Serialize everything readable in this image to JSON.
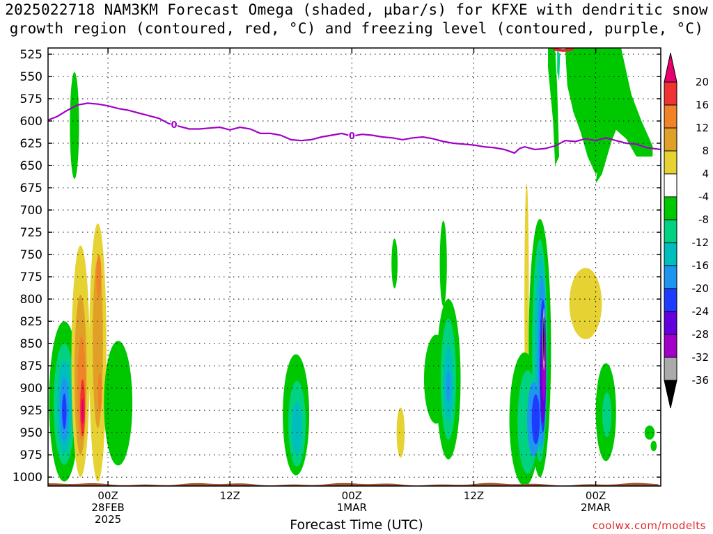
{
  "title_line1": "2025022718 NAM3KM Forecast Omega (shaded, µbar/s) for KFXE with dendritic snow",
  "title_line2": "growth region (contoured, red, °C) and freezing level (contoured, purple, °C)",
  "xlabel": "Forecast Time (UTC)",
  "credit": "coolwx.com/modelts",
  "colors": {
    "freezing_level": "#a000c8",
    "snow_region": "#e0282a",
    "terrain": "#a0522d"
  },
  "chart_data": {
    "type": "heatmap",
    "y_ticks": [
      525,
      550,
      575,
      600,
      625,
      650,
      675,
      700,
      725,
      750,
      775,
      800,
      825,
      850,
      875,
      900,
      925,
      950,
      975,
      1000
    ],
    "y_range_hpa": [
      518,
      1010
    ],
    "x_range_hours": [
      -5.9,
      54.4
    ],
    "x_ticks": [
      {
        "hour": 0,
        "lines": [
          "00Z",
          "28FEB",
          "2025"
        ]
      },
      {
        "hour": 12,
        "lines": [
          "12Z"
        ]
      },
      {
        "hour": 24,
        "lines": [
          "00Z",
          "1MAR"
        ]
      },
      {
        "hour": 36,
        "lines": [
          "12Z"
        ]
      },
      {
        "hour": 48,
        "lines": [
          "00Z",
          "2MAR"
        ]
      }
    ],
    "grid": true,
    "colorbar": {
      "labels": [
        "20",
        "16",
        "12",
        "8",
        "4",
        "-4",
        "-8",
        "-12",
        "-16",
        "-20",
        "-24",
        "-28",
        "-32",
        "-36"
      ],
      "colors": [
        "#e8006e",
        "#f03232",
        "#f08228",
        "#e0a028",
        "#e6d232",
        "#ffffff",
        "#00c800",
        "#00d282",
        "#00bebe",
        "#1e96f0",
        "#1e3cff",
        "#6400dc",
        "#a000c8",
        "#aaaaaa",
        "#000000"
      ]
    },
    "freezing_level": {
      "label": "0",
      "label_positions_hours": [
        6.5,
        24
      ],
      "points": [
        [
          -5.9,
          599
        ],
        [
          -5,
          595
        ],
        [
          -4,
          588
        ],
        [
          -3,
          582
        ],
        [
          -2,
          580
        ],
        [
          -1,
          581
        ],
        [
          0,
          583
        ],
        [
          1,
          586
        ],
        [
          2,
          588
        ],
        [
          3,
          591
        ],
        [
          4,
          594
        ],
        [
          5,
          597
        ],
        [
          6,
          603
        ],
        [
          7,
          606
        ],
        [
          8,
          609
        ],
        [
          9,
          609
        ],
        [
          10,
          608
        ],
        [
          11,
          607
        ],
        [
          12,
          610
        ],
        [
          13,
          607
        ],
        [
          14,
          609
        ],
        [
          15,
          614
        ],
        [
          16,
          614
        ],
        [
          17,
          616
        ],
        [
          18,
          621
        ],
        [
          19,
          622
        ],
        [
          20,
          621
        ],
        [
          21,
          618
        ],
        [
          22,
          616
        ],
        [
          23,
          614
        ],
        [
          24,
          617
        ],
        [
          25,
          615
        ],
        [
          26,
          616
        ],
        [
          27,
          618
        ],
        [
          28,
          619
        ],
        [
          29,
          621
        ],
        [
          30,
          619
        ],
        [
          31,
          618
        ],
        [
          32,
          620
        ],
        [
          33,
          623
        ],
        [
          34,
          625
        ],
        [
          35,
          626
        ],
        [
          36,
          627
        ],
        [
          37,
          629
        ],
        [
          38,
          630
        ],
        [
          39,
          632
        ],
        [
          40,
          636
        ],
        [
          40.5,
          631
        ],
        [
          41,
          629
        ],
        [
          42,
          632
        ],
        [
          43,
          631
        ],
        [
          44,
          628
        ],
        [
          45,
          622
        ],
        [
          46,
          623
        ],
        [
          47,
          620
        ],
        [
          48,
          622
        ],
        [
          49,
          619
        ],
        [
          50,
          622
        ],
        [
          51,
          625
        ],
        [
          52,
          626
        ],
        [
          53,
          630
        ],
        [
          54.4,
          632
        ]
      ]
    },
    "snow_region": {
      "label": "",
      "points": [
        [
          43.8,
          519
        ],
        [
          44.8,
          521
        ],
        [
          45.8,
          519
        ]
      ]
    },
    "surface_pressure_hpa": 1008,
    "blobs": [
      {
        "h": -3.3,
        "p": 605,
        "rx": 0.45,
        "rp": 60,
        "c": "#00c800"
      },
      {
        "h": -4.3,
        "p": 915,
        "rx": 1.5,
        "rp": 90,
        "c": "#00c800"
      },
      {
        "h": -4.3,
        "p": 918,
        "rx": 1.05,
        "rp": 68,
        "c": "#00d282"
      },
      {
        "h": -4.3,
        "p": 921,
        "rx": 0.72,
        "rp": 52,
        "c": "#00bebe"
      },
      {
        "h": -4.3,
        "p": 924,
        "rx": 0.45,
        "rp": 36,
        "c": "#1e96f0"
      },
      {
        "h": -4.3,
        "p": 926,
        "rx": 0.22,
        "rp": 20,
        "c": "#1e3cff"
      },
      {
        "h": -2.7,
        "p": 870,
        "rx": 0.9,
        "rp": 130,
        "c": "#e6d232"
      },
      {
        "h": -2.7,
        "p": 885,
        "rx": 0.6,
        "rp": 90,
        "c": "#e0a028"
      },
      {
        "h": -2.6,
        "p": 900,
        "rx": 0.4,
        "rp": 58,
        "c": "#f08228"
      },
      {
        "h": -2.5,
        "p": 922,
        "rx": 0.24,
        "rp": 32,
        "c": "#f03232"
      },
      {
        "h": -2.5,
        "p": 926,
        "rx": 0.14,
        "rp": 14,
        "c": "#e8006e"
      },
      {
        "h": -1.0,
        "p": 860,
        "rx": 0.85,
        "rp": 145,
        "c": "#e6d232"
      },
      {
        "h": -1.0,
        "p": 850,
        "rx": 0.5,
        "rp": 95,
        "c": "#e0a028"
      },
      {
        "h": -0.9,
        "p": 775,
        "rx": 0.25,
        "rp": 25,
        "c": "#f08228"
      },
      {
        "h": -0.8,
        "p": 905,
        "rx": 0.2,
        "rp": 22,
        "c": "#f08228"
      },
      {
        "h": 1.0,
        "p": 917,
        "rx": 1.4,
        "rp": 70,
        "c": "#00c800"
      },
      {
        "h": 18.5,
        "p": 930,
        "rx": 1.3,
        "rp": 68,
        "c": "#00c800"
      },
      {
        "h": 18.6,
        "p": 940,
        "rx": 0.85,
        "rp": 48,
        "c": "#00d282"
      },
      {
        "h": 18.6,
        "p": 945,
        "rx": 0.5,
        "rp": 30,
        "c": "#00bebe"
      },
      {
        "h": 28.2,
        "p": 760,
        "rx": 0.3,
        "rp": 28,
        "c": "#00c800"
      },
      {
        "h": 28.8,
        "p": 950,
        "rx": 0.4,
        "rp": 28,
        "c": "#e6d232"
      },
      {
        "h": 33.0,
        "p": 760,
        "rx": 0.35,
        "rp": 48,
        "c": "#00c800"
      },
      {
        "h": 32.3,
        "p": 890,
        "rx": 1.2,
        "rp": 50,
        "c": "#00c800"
      },
      {
        "h": 33.5,
        "p": 890,
        "rx": 1.2,
        "rp": 90,
        "c": "#00c800"
      },
      {
        "h": 33.5,
        "p": 890,
        "rx": 0.75,
        "rp": 68,
        "c": "#00d282"
      },
      {
        "h": 33.5,
        "p": 895,
        "rx": 0.45,
        "rp": 42,
        "c": "#00bebe"
      },
      {
        "h": 33.5,
        "p": 898,
        "rx": 0.22,
        "rp": 18,
        "c": "#1e96f0"
      },
      {
        "h": 41.2,
        "p": 800,
        "rx": 0.22,
        "rp": 130,
        "c": "#e6d232"
      },
      {
        "h": 47.0,
        "p": 805,
        "rx": 1.6,
        "rp": 40,
        "c": "#e6d232"
      },
      {
        "h": 41.0,
        "p": 935,
        "rx": 1.5,
        "rp": 75,
        "c": "#00c800"
      },
      {
        "h": 42.5,
        "p": 855,
        "rx": 1.1,
        "rp": 145,
        "c": "#00c800"
      },
      {
        "h": 41.3,
        "p": 938,
        "rx": 1.0,
        "rp": 58,
        "c": "#00d282"
      },
      {
        "h": 42.5,
        "p": 858,
        "rx": 0.75,
        "rp": 125,
        "c": "#00d282"
      },
      {
        "h": 42.6,
        "p": 862,
        "rx": 0.58,
        "rp": 110,
        "c": "#00bebe"
      },
      {
        "h": 41.9,
        "p": 935,
        "rx": 0.65,
        "rp": 42,
        "c": "#1e96f0"
      },
      {
        "h": 42.7,
        "p": 870,
        "rx": 0.42,
        "rp": 95,
        "c": "#1e96f0"
      },
      {
        "h": 42.8,
        "p": 875,
        "rx": 0.33,
        "rp": 75,
        "c": "#1e3cff"
      },
      {
        "h": 42.8,
        "p": 885,
        "rx": 0.27,
        "rp": 55,
        "c": "#6400dc"
      },
      {
        "h": 42.9,
        "p": 870,
        "rx": 0.2,
        "rp": 45,
        "c": "#a000c8"
      },
      {
        "h": 42.9,
        "p": 845,
        "rx": 0.12,
        "rp": 35,
        "c": "#aaaaaa"
      },
      {
        "h": 42.9,
        "p": 845,
        "rx": 0.07,
        "rp": 25,
        "c": "#000000"
      },
      {
        "h": 42.1,
        "p": 935,
        "rx": 0.4,
        "rp": 28,
        "c": "#1e3cff"
      },
      {
        "h": 49.0,
        "p": 927,
        "rx": 1.0,
        "rp": 55,
        "c": "#00c800"
      },
      {
        "h": 49.1,
        "p": 930,
        "rx": 0.45,
        "rp": 25,
        "c": "#00d282"
      },
      {
        "h": 53.3,
        "p": 950,
        "rx": 0.5,
        "rp": 8,
        "c": "#00c800"
      },
      {
        "h": 53.7,
        "p": 965,
        "rx": 0.3,
        "rp": 6,
        "c": "#00c800"
      }
    ],
    "polygons": [
      {
        "c": "#00c800",
        "pts": [
          [
            43.3,
            518
          ],
          [
            44.0,
            518
          ],
          [
            44.2,
            560
          ],
          [
            44.4,
            640
          ],
          [
            44.0,
            650
          ],
          [
            43.8,
            600
          ],
          [
            43.3,
            540
          ]
        ]
      },
      {
        "c": "#00d282",
        "pts": [
          [
            44.2,
            520
          ],
          [
            44.5,
            525
          ],
          [
            44.4,
            555
          ],
          [
            44.2,
            545
          ]
        ]
      },
      {
        "c": "#00c800",
        "pts": [
          [
            45.0,
            518
          ],
          [
            50.5,
            518
          ],
          [
            51.5,
            570
          ],
          [
            52.5,
            600
          ],
          [
            53.6,
            628
          ],
          [
            53.6,
            640
          ],
          [
            52.0,
            640
          ],
          [
            51.0,
            620
          ],
          [
            50.0,
            610
          ],
          [
            48.8,
            645
          ],
          [
            48.0,
            660
          ],
          [
            47.2,
            640
          ],
          [
            46.5,
            612
          ],
          [
            45.8,
            590
          ],
          [
            45.2,
            560
          ]
        ]
      },
      {
        "c": "#00c800",
        "pts": [
          [
            48.5,
            625
          ],
          [
            49.5,
            625
          ],
          [
            48.6,
            660
          ],
          [
            48.0,
            670
          ],
          [
            48.2,
            650
          ]
        ]
      }
    ]
  }
}
